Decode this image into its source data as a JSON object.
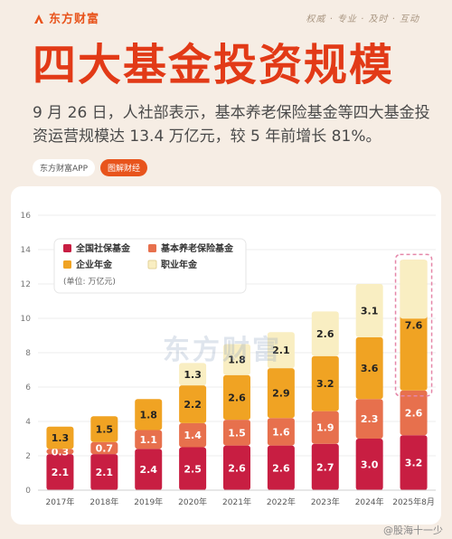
{
  "header": {
    "logo_text": "东方财富",
    "logo_icon": "flame-logo-icon",
    "slogan": "权威 · 专业 · 及时 · 互动"
  },
  "title": "四大基金投资规模",
  "subtitle": "9 月 26 日，人社部表示，基本养老保险基金等四大基金投资运营规模达 13.4 万亿元，较 5 年前增长 81%。",
  "tags": {
    "app": "东方财富APP",
    "read": "图解财经"
  },
  "watermark": "东方财富",
  "footer": {
    "weibo": "@股海十一少"
  },
  "colors": {
    "social_security": "#c81e42",
    "basic_pension": "#e7704d",
    "enterprise_annuity": "#f0a323",
    "occupational_annuity": "#f9eec2",
    "accent": "#e23a17",
    "highlight_border": "#e586a8"
  },
  "chart_data": {
    "type": "bar",
    "stacked": true,
    "categories": [
      "2017年",
      "2018年",
      "2019年",
      "2020年",
      "2021年",
      "2022年",
      "2023年",
      "2024年",
      "2025年8月"
    ],
    "series": [
      {
        "name": "全国社保基金",
        "values": [
          2.1,
          2.1,
          2.4,
          2.5,
          2.6,
          2.6,
          2.7,
          3.0,
          3.2
        ]
      },
      {
        "name": "基本养老保险基金",
        "values": [
          0.3,
          0.7,
          1.1,
          1.4,
          1.5,
          1.6,
          1.9,
          2.3,
          2.6
        ]
      },
      {
        "name": "企业年金",
        "values": [
          1.3,
          1.5,
          1.8,
          2.2,
          2.6,
          2.9,
          3.2,
          3.6,
          7.6
        ]
      },
      {
        "name": "职业年金",
        "values": [
          null,
          null,
          null,
          1.3,
          1.8,
          2.1,
          2.6,
          3.1,
          null
        ]
      }
    ],
    "data_labels": [
      [
        "2.1",
        "2.1",
        "2.4",
        "2.5",
        "2.6",
        "2.6",
        "2.7",
        "3.0",
        "3.2"
      ],
      [
        "0.3",
        "0.7",
        "1.1",
        "1.4",
        "1.5",
        "1.6",
        "1.9",
        "2.3",
        "2.6"
      ],
      [
        "1.3",
        "1.5",
        "1.8",
        "2.2",
        "2.6",
        "2.9",
        "3.2",
        "3.6",
        ""
      ],
      [
        "",
        "",
        "",
        "1.3",
        "1.8",
        "2.1",
        "2.6",
        "3.1",
        ""
      ]
    ],
    "combined_label_last": "7.6",
    "ylim": [
      0,
      16
    ],
    "yticks": [
      "0",
      "2",
      "4",
      "6",
      "8",
      "10",
      "12",
      "14",
      "16"
    ],
    "unit": "(单位: 万亿元)",
    "grid": true,
    "legend_position": "top-left",
    "highlighted_category": "2025年8月"
  }
}
